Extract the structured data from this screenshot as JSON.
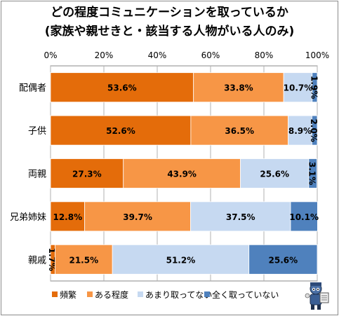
{
  "chart_data": {
    "type": "bar",
    "orientation": "horizontal",
    "stacked": true,
    "title": "どの程度コミュニケーションを取っているか",
    "subtitle": "(家族や親せきと・該当する人物がいる人のみ)",
    "categories": [
      "配偶者",
      "子供",
      "両親",
      "兄弟姉妹",
      "親戚"
    ],
    "xlim": [
      0,
      100
    ],
    "x_ticks": [
      "0%",
      "20%",
      "40%",
      "60%",
      "80%",
      "100%"
    ],
    "grid": true,
    "legend_position": "bottom",
    "series": [
      {
        "name": "頻繁",
        "color": "#E46C0A",
        "values": [
          53.6,
          52.6,
          27.3,
          12.8,
          1.7
        ],
        "labels": [
          "53.6%",
          "52.6%",
          "27.3%",
          "12.8%",
          "1.7%"
        ]
      },
      {
        "name": "ある程度",
        "color": "#F79646",
        "values": [
          33.8,
          36.5,
          43.9,
          39.7,
          21.5
        ],
        "labels": [
          "33.8%",
          "36.5%",
          "43.9%",
          "39.7%",
          "21.5%"
        ]
      },
      {
        "name": "あまり取ってない",
        "color": "#C6D9F1",
        "values": [
          10.7,
          8.9,
          25.6,
          37.5,
          51.2
        ],
        "labels": [
          "10.7%",
          "8.9%",
          "25.6%",
          "37.5%",
          "51.2%"
        ]
      },
      {
        "name": "全く取っていない",
        "color": "#4F81BD",
        "values": [
          1.9,
          2.0,
          3.1,
          10.1,
          25.6
        ],
        "labels": [
          "1.9%",
          "2.0%",
          "3.1%",
          "10.1%",
          "25.6%"
        ]
      }
    ]
  }
}
